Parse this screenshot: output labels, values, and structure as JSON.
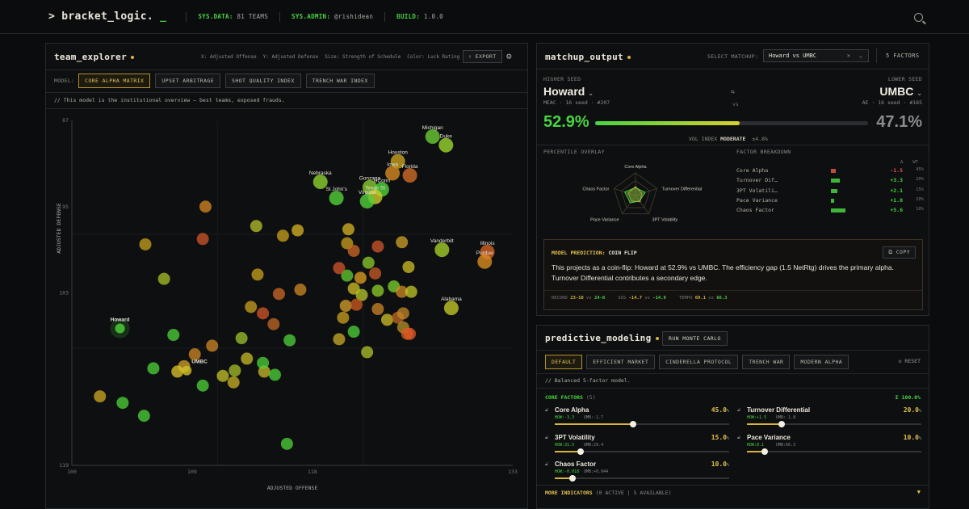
{
  "topbar": {
    "logo_main": "> bracket_logic.",
    "logo_cursor": "_",
    "sysdata_key": "SYS.DATA:",
    "sysdata_val": "81 TEAMS",
    "sysadmin_key": "SYS.ADMIN:",
    "sysadmin_val": "@rishidean",
    "build_key": "BUILD:",
    "build_val": "1.0.0"
  },
  "explorer": {
    "title": "team_explorer",
    "axes_note": {
      "x": "X: Adjusted Offense",
      "y": "Y: Adjusted Defense",
      "size": "Size: Strength of Schedule",
      "color": "Color: Luck Rating"
    },
    "export": "EXPORT",
    "model_label": "MODEL:",
    "models": [
      "CORE ALPHA MATRIX",
      "UPSET ARBITRAGE",
      "SHOT QUALITY INDEX",
      "TRENCH WAR INDEX"
    ],
    "desc": "//  This model is the institutional overview — best teams, exposed frauds."
  },
  "chart_data": {
    "type": "scatter",
    "xlabel": "ADJUSTED OFFENSE",
    "ylabel": "ADJUSTED DEFENSE",
    "xticks": [
      "100",
      "109",
      "118",
      "133"
    ],
    "yticks": [
      "87",
      "95",
      "103",
      "119"
    ],
    "xlim": [
      100,
      133
    ],
    "ylim": [
      87,
      119
    ],
    "y_inverted": true,
    "labeled_points": [
      {
        "name": "Michigan",
        "x": 127,
        "y": 88.5,
        "color": "#6bc933"
      },
      {
        "name": "Duke",
        "x": 128,
        "y": 89.3,
        "color": "#9bd42e"
      },
      {
        "name": "Houston",
        "x": 124.4,
        "y": 90.8,
        "color": "#c9a11f"
      },
      {
        "name": "Iowa",
        "x": 124,
        "y": 91.9,
        "color": "#d68a22"
      },
      {
        "name": "Florida",
        "x": 125.3,
        "y": 92.1,
        "color": "#cf6a25"
      },
      {
        "name": "Nebraska",
        "x": 118.6,
        "y": 92.7,
        "color": "#8ccf2e"
      },
      {
        "name": "Gonzaga",
        "x": 122.3,
        "y": 93.2,
        "color": "#88c92d"
      },
      {
        "name": "UConn",
        "x": 123.2,
        "y": 93.4,
        "color": "#4fd438"
      },
      {
        "name": "Texas St",
        "x": 122.7,
        "y": 94.1,
        "color": "#cccc2a"
      },
      {
        "name": "St John's",
        "x": 119.8,
        "y": 94.2,
        "color": "#53cf36"
      },
      {
        "name": "Virginia",
        "x": 122.1,
        "y": 94.5,
        "color": "#52cf38"
      },
      {
        "name": "Vanderbilt",
        "x": 127.7,
        "y": 99,
        "color": "#a3cc2b"
      },
      {
        "name": "Illinois",
        "x": 131.1,
        "y": 99.2,
        "color": "#d26322"
      },
      {
        "name": "Purdue",
        "x": 130.9,
        "y": 100.1,
        "color": "#d88b20"
      },
      {
        "name": "Alabama",
        "x": 128.4,
        "y": 104.4,
        "color": "#c0c327"
      },
      {
        "name": "Howard",
        "x": 103.6,
        "y": 106.3,
        "color": "#4fd438"
      },
      {
        "name": "UMBC",
        "x": 108.6,
        "y": 110.2,
        "color": "#d0c127"
      }
    ],
    "other_points": [
      {
        "x": 110,
        "y": 95,
        "color": "#d68a22"
      },
      {
        "x": 105.5,
        "y": 98.5,
        "color": "#c9a11f"
      },
      {
        "x": 109.8,
        "y": 98,
        "color": "#d2572a"
      },
      {
        "x": 113.8,
        "y": 96.8,
        "color": "#b9c22a"
      },
      {
        "x": 115.8,
        "y": 97.7,
        "color": "#c9a11f"
      },
      {
        "x": 116.9,
        "y": 97.2,
        "color": "#d8b423"
      },
      {
        "x": 120.7,
        "y": 97.1,
        "color": "#d8b423"
      },
      {
        "x": 106.9,
        "y": 101.7,
        "color": "#a9c328"
      },
      {
        "x": 113.9,
        "y": 101.3,
        "color": "#c9a11f"
      },
      {
        "x": 115.5,
        "y": 103.1,
        "color": "#cf6a25"
      },
      {
        "x": 117.1,
        "y": 102.7,
        "color": "#d08a24"
      },
      {
        "x": 113.4,
        "y": 104.3,
        "color": "#c9a11f"
      },
      {
        "x": 114.3,
        "y": 104.9,
        "color": "#d2572a"
      },
      {
        "x": 115.1,
        "y": 105.9,
        "color": "#c06a24"
      },
      {
        "x": 120.6,
        "y": 98.4,
        "color": "#c9a11f"
      },
      {
        "x": 121.1,
        "y": 99.1,
        "color": "#cf6a25"
      },
      {
        "x": 122.2,
        "y": 100.2,
        "color": "#8ccf2e"
      },
      {
        "x": 122.9,
        "y": 98.7,
        "color": "#d2572a"
      },
      {
        "x": 124.7,
        "y": 98.3,
        "color": "#d2a32a"
      },
      {
        "x": 125.2,
        "y": 100.6,
        "color": "#cfbf26"
      },
      {
        "x": 120.6,
        "y": 101.4,
        "color": "#64cf33"
      },
      {
        "x": 121.6,
        "y": 101.6,
        "color": "#e0a021"
      },
      {
        "x": 122.7,
        "y": 101.2,
        "color": "#ce5e24"
      },
      {
        "x": 121.1,
        "y": 102.6,
        "color": "#d0c127"
      },
      {
        "x": 121.7,
        "y": 103.2,
        "color": "#b7ca2b"
      },
      {
        "x": 122.9,
        "y": 102.8,
        "color": "#8fcf2b"
      },
      {
        "x": 124.1,
        "y": 102.4,
        "color": "#7bd52f"
      },
      {
        "x": 124.7,
        "y": 102.9,
        "color": "#d08a24"
      },
      {
        "x": 125.4,
        "y": 102.9,
        "color": "#c2c826"
      },
      {
        "x": 120.5,
        "y": 104.2,
        "color": "#d6a22a"
      },
      {
        "x": 121.3,
        "y": 104.1,
        "color": "#d25b22"
      },
      {
        "x": 120.3,
        "y": 105.3,
        "color": "#c9a11f"
      },
      {
        "x": 122.9,
        "y": 104.5,
        "color": "#cf8624"
      },
      {
        "x": 123.6,
        "y": 105.5,
        "color": "#d0c127"
      },
      {
        "x": 124.4,
        "y": 105.3,
        "color": "#c06a24"
      },
      {
        "x": 124.8,
        "y": 106.2,
        "color": "#b7922a"
      },
      {
        "x": 125.1,
        "y": 106.8,
        "color": "#d06324"
      },
      {
        "x": 125.3,
        "y": 106.8,
        "color": "#e25a26"
      },
      {
        "x": 124.8,
        "y": 104.9,
        "color": "#c5882a"
      },
      {
        "x": 121.1,
        "y": 106.6,
        "color": "#4fd438"
      },
      {
        "x": 120,
        "y": 107.3,
        "color": "#ccae25"
      },
      {
        "x": 122.1,
        "y": 108.5,
        "color": "#b0c428"
      },
      {
        "x": 110.5,
        "y": 107.9,
        "color": "#d08a24"
      },
      {
        "x": 112.7,
        "y": 107.2,
        "color": "#9bc42c"
      },
      {
        "x": 113.1,
        "y": 109.1,
        "color": "#c9bb27"
      },
      {
        "x": 112.2,
        "y": 110.2,
        "color": "#a8c22a"
      },
      {
        "x": 114.4,
        "y": 110.3,
        "color": "#c9bb27"
      },
      {
        "x": 111.3,
        "y": 110.7,
        "color": "#c6c428"
      },
      {
        "x": 112.1,
        "y": 111.3,
        "color": "#cbb326"
      },
      {
        "x": 108.4,
        "y": 109.8,
        "color": "#d2a32a"
      },
      {
        "x": 106.1,
        "y": 110,
        "color": "#4fd438"
      },
      {
        "x": 107.9,
        "y": 110.3,
        "color": "#e0c529"
      },
      {
        "x": 109.8,
        "y": 111.6,
        "color": "#4fd438"
      },
      {
        "x": 115.2,
        "y": 110.6,
        "color": "#4fd438"
      },
      {
        "x": 114.3,
        "y": 109.5,
        "color": "#4fd438"
      },
      {
        "x": 116.3,
        "y": 107.4,
        "color": "#4fd438"
      },
      {
        "x": 102.1,
        "y": 112.6,
        "color": "#d0aa22"
      },
      {
        "x": 103.8,
        "y": 113.2,
        "color": "#4fd438"
      },
      {
        "x": 105.4,
        "y": 114.4,
        "color": "#4fd438"
      },
      {
        "x": 107.6,
        "y": 106.9,
        "color": "#4fd438"
      },
      {
        "x": 109.2,
        "y": 108.7,
        "color": "#d08a24"
      },
      {
        "x": 116.1,
        "y": 117,
        "color": "#4fd438"
      },
      {
        "x": 120,
        "y": 100.7,
        "color": "#d2572a"
      }
    ]
  },
  "matchup": {
    "title": "matchup_output",
    "select_label": "SELECT MATCHUP:",
    "select_value": "Howard vs UMBC",
    "factors": "5 FACTORS",
    "higher_label": "HIGHER SEED",
    "lower_label": "LOWER SEED",
    "team_a": "Howard",
    "team_a_meta": "MEAC · 16 seed · #207",
    "team_b": "UMBC",
    "team_b_meta": "AE · 16 seed · #185",
    "vs": "vs",
    "prob_a": "52.9%",
    "prob_b": "47.1%",
    "prob_fraction": 0.529,
    "vol_label": "VOL INDEX",
    "vol_value": "MODERATE",
    "vol_delta": "±4.8%",
    "percentile_label": "PERCENTILE OVERLAY",
    "breakdown_label": "FACTOR BREAKDOWN",
    "radar_labels": [
      "Core Alpha",
      "Turnover Differential",
      "3PT Volatility",
      "Pace Variance",
      "Chaos Factor"
    ],
    "col_delta": "Δ",
    "col_wt": "WT",
    "factors_list": [
      {
        "name": "Core Alpha",
        "delta": "-1.5",
        "wt": "45%",
        "color": "#e2564b",
        "fill": 0.12
      },
      {
        "name": "Turnover Dif…",
        "delta": "+3.3",
        "wt": "20%",
        "color": "#48d442",
        "fill": 0.22
      },
      {
        "name": "3PT Volatili…",
        "delta": "+2.1",
        "wt": "15%",
        "color": "#48d442",
        "fill": 0.15
      },
      {
        "name": "Pace Variance",
        "delta": "+1.0",
        "wt": "10%",
        "color": "#48d442",
        "fill": 0.08
      },
      {
        "name": "Chaos Factor",
        "delta": "+5.6",
        "wt": "10%",
        "color": "#48d442",
        "fill": 0.36
      }
    ],
    "prediction_label": "MODEL PREDICTION:",
    "prediction_tag": "COIN FLIP",
    "copy": "COPY",
    "prediction_text": "This projects as a coin-flip: Howard at 52.9% vs UMBC. The efficiency gap (1.5 NetRtg) drives the primary alpha. Turnover Differential contributes a secondary edge.",
    "stats": [
      {
        "label": "RECORD",
        "a": "23-10",
        "vs": "vs",
        "b": "24-8"
      },
      {
        "label": "SOS",
        "a": "-14.7",
        "vs": "vs",
        "b": "-14.9"
      },
      {
        "label": "TEMPO",
        "a": "69.1",
        "vs": "vs",
        "b": "66.3"
      }
    ]
  },
  "predictive": {
    "title": "predictive_modeling",
    "run": "RUN MONTE CARLO",
    "presets": [
      "DEFAULT",
      "EFFICIENT MARKET",
      "CINDERELLA PROTOCOL",
      "TRENCH WAR",
      "MODERN ALPHA"
    ],
    "reset": "RESET",
    "desc": "//  Balanced 5-factor model.",
    "core_label": "CORE FACTORS",
    "core_count": "(5)",
    "total": "Σ 100.0%",
    "sliders": [
      {
        "name": "Core Alpha",
        "value": "45.0",
        "unit": "%",
        "how": "HOW:-3.3",
        "umb": "UMB:-1.7",
        "level": 0.45
      },
      {
        "name": "Turnover Differential",
        "value": "20.0",
        "unit": "%",
        "how": "HOW:+1.5",
        "umb": "UMB:-1.8",
        "level": 0.2
      },
      {
        "name": "3PT Volatility",
        "value": "15.0",
        "unit": "%",
        "how": "HOW:31.5",
        "umb": "UMB:29.4",
        "level": 0.15
      },
      {
        "name": "Pace Variance",
        "value": "10.0",
        "unit": "%",
        "how": "HOW:8.1",
        "umb": "UMB:66.3",
        "level": 0.1
      },
      {
        "name": "Chaos Factor",
        "value": "10.0",
        "unit": "%",
        "how": "HOW:-0.018",
        "umb": "UMB:+0.044",
        "level": 0.1
      }
    ],
    "more": "MORE INDICATORS",
    "more_meta": "(0 ACTIVE | 5 AVAILABLE)"
  }
}
